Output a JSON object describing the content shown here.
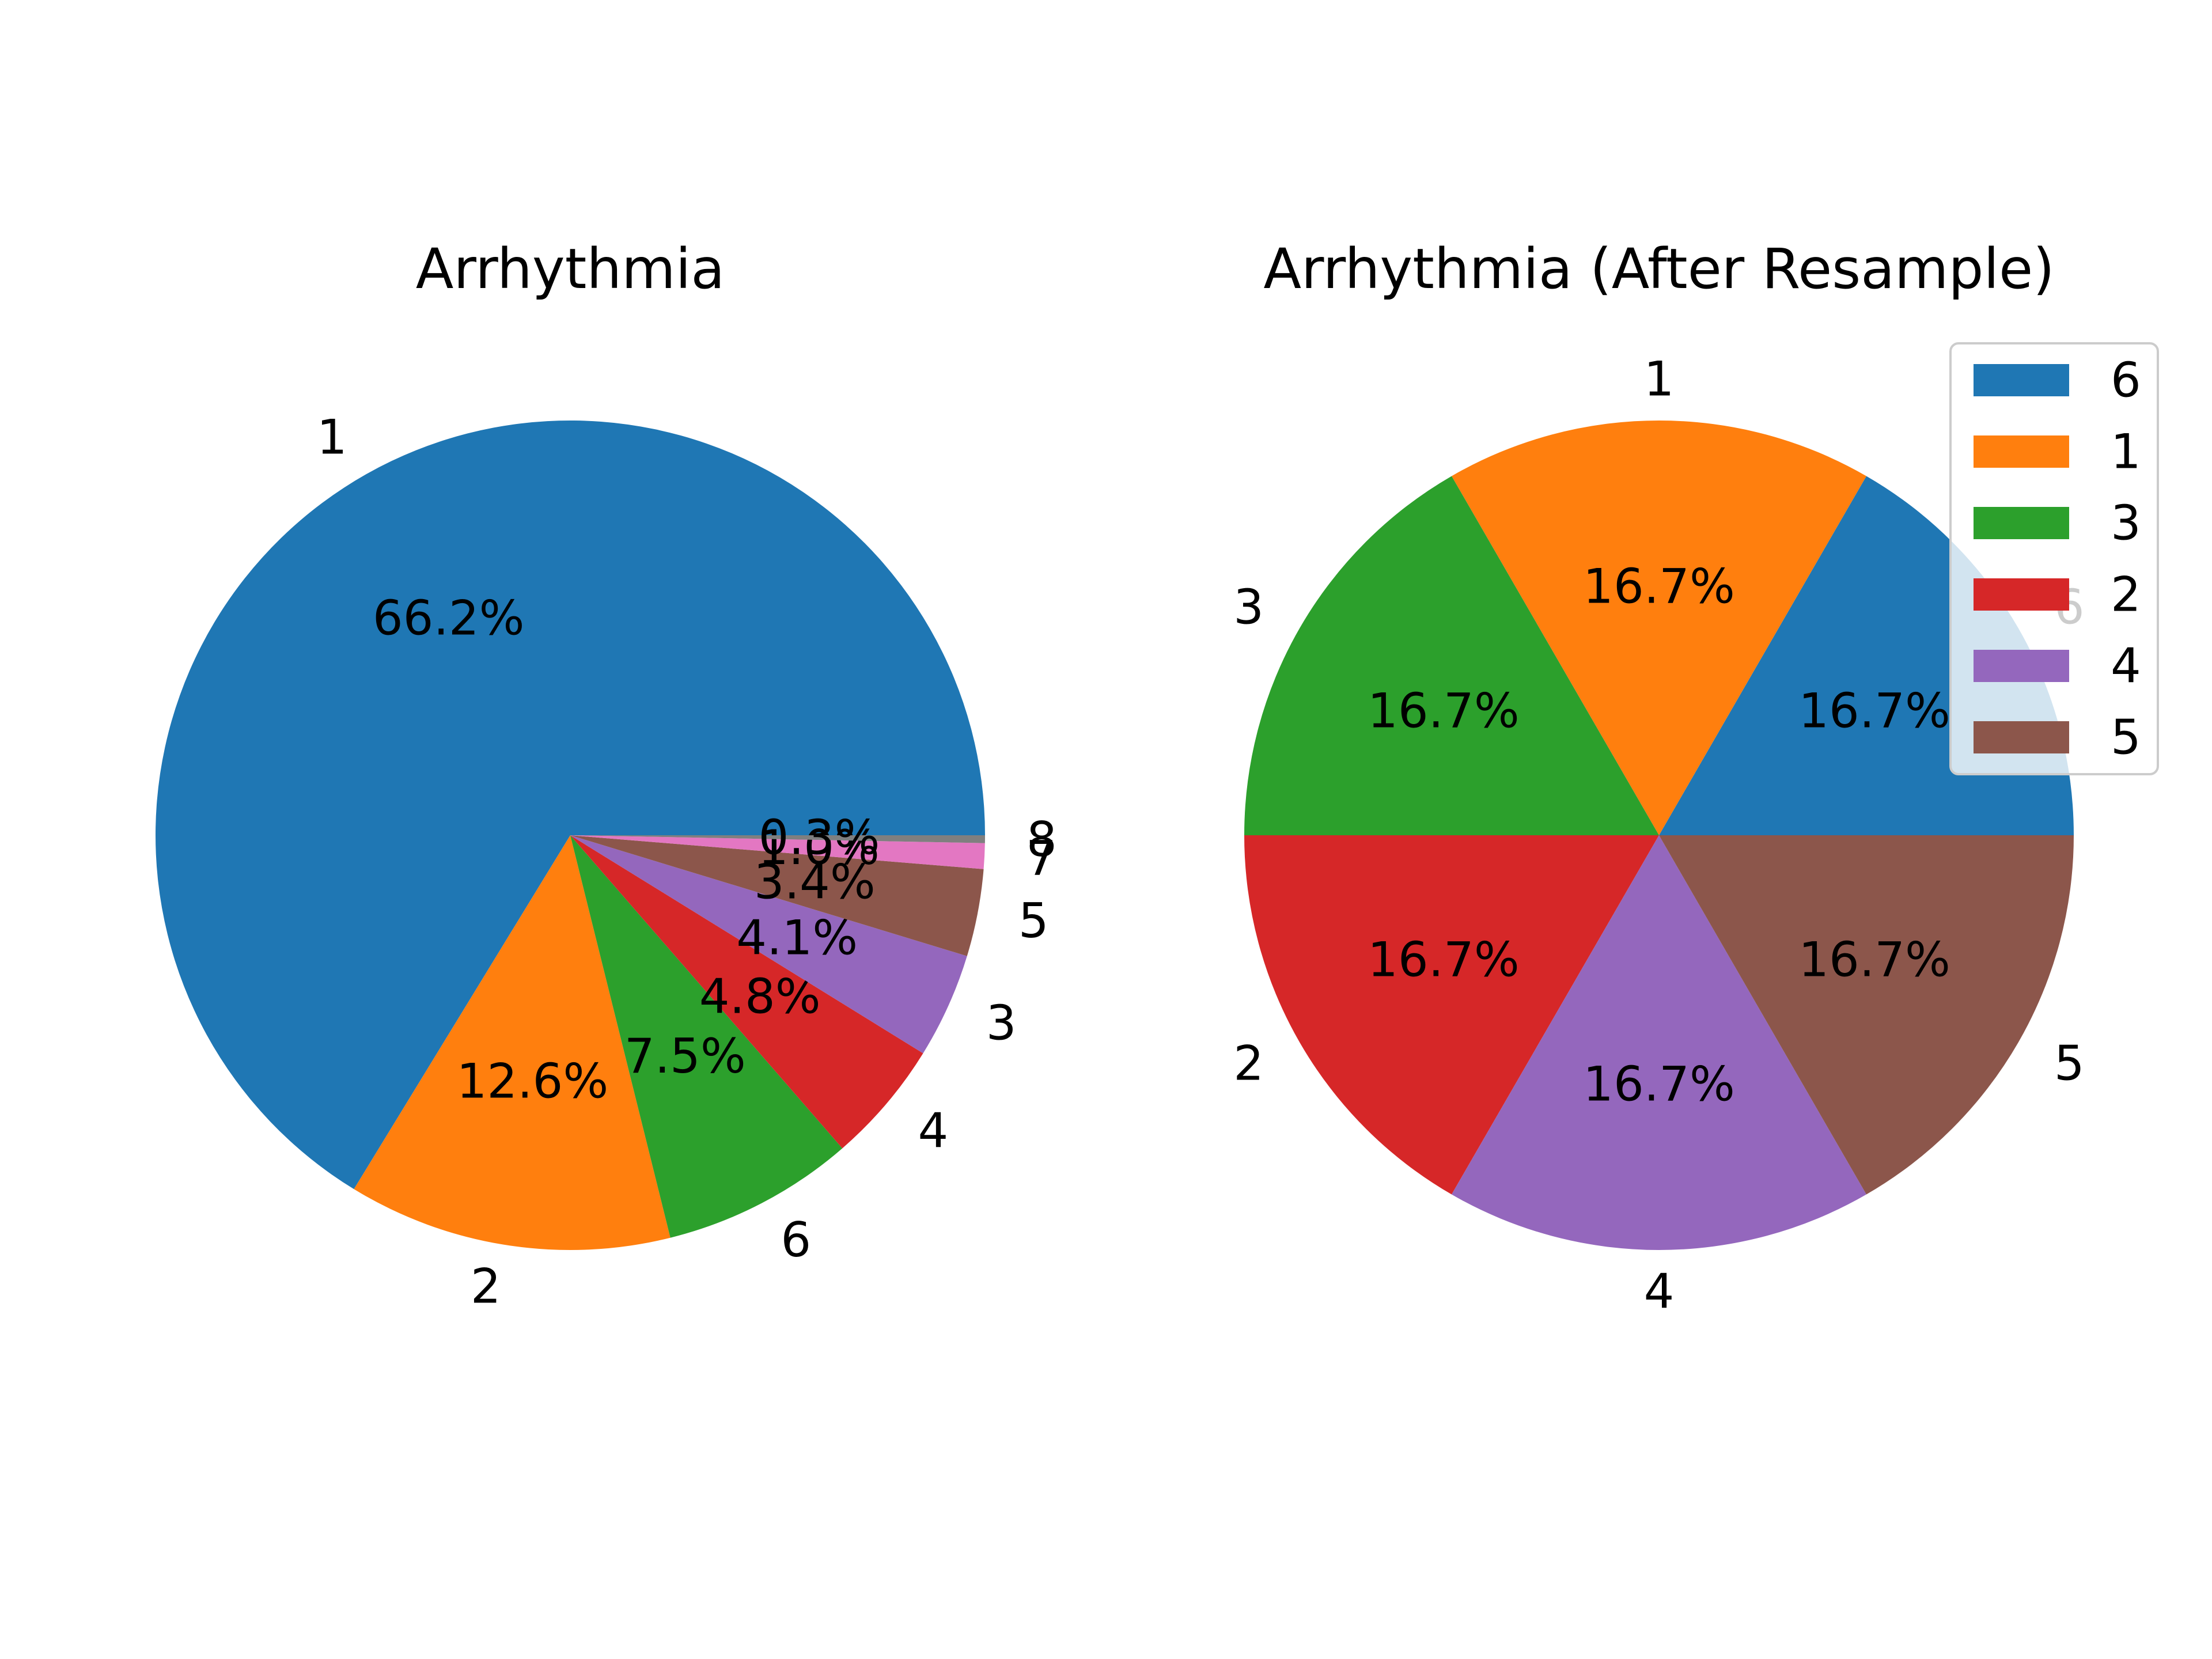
{
  "chart_data": [
    {
      "type": "pie",
      "title": "Arrhythmia",
      "start_angle": 0,
      "direction": "counterclockwise",
      "slices": [
        {
          "label": "1",
          "value": 66.2,
          "pct_label": "66.2%",
          "color": "#1f77b4"
        },
        {
          "label": "2",
          "value": 12.6,
          "pct_label": "12.6%",
          "color": "#ff7f0e"
        },
        {
          "label": "6",
          "value": 7.5,
          "pct_label": "7.5%",
          "color": "#2ca02c"
        },
        {
          "label": "4",
          "value": 4.8,
          "pct_label": "4.8%",
          "color": "#d62728"
        },
        {
          "label": "3",
          "value": 4.1,
          "pct_label": "4.1%",
          "color": "#9467bd"
        },
        {
          "label": "5",
          "value": 3.4,
          "pct_label": "3.4%",
          "color": "#8c564b"
        },
        {
          "label": "7",
          "value": 1.0,
          "pct_label": "1.0%",
          "color": "#e377c2"
        },
        {
          "label": "8",
          "value": 0.3,
          "pct_label": "0.3%",
          "color": "#7f7f7f"
        }
      ]
    },
    {
      "type": "pie",
      "title": "Arrhythmia (After Resample)",
      "start_angle": 0,
      "direction": "counterclockwise",
      "slices": [
        {
          "label": "6",
          "value": 16.7,
          "pct_label": "16.7%",
          "color": "#1f77b4"
        },
        {
          "label": "1",
          "value": 16.7,
          "pct_label": "16.7%",
          "color": "#ff7f0e"
        },
        {
          "label": "3",
          "value": 16.7,
          "pct_label": "16.7%",
          "color": "#2ca02c"
        },
        {
          "label": "2",
          "value": 16.7,
          "pct_label": "16.7%",
          "color": "#d62728"
        },
        {
          "label": "4",
          "value": 16.7,
          "pct_label": "16.7%",
          "color": "#9467bd"
        },
        {
          "label": "5",
          "value": 16.7,
          "pct_label": "16.7%",
          "color": "#8c564b"
        }
      ],
      "legend": {
        "placement": "upper right",
        "entries": [
          {
            "label": "6",
            "color": "#1f77b4"
          },
          {
            "label": "1",
            "color": "#ff7f0e"
          },
          {
            "label": "3",
            "color": "#2ca02c"
          },
          {
            "label": "2",
            "color": "#d62728"
          },
          {
            "label": "4",
            "color": "#9467bd"
          },
          {
            "label": "5",
            "color": "#8c564b"
          }
        ]
      }
    }
  ]
}
